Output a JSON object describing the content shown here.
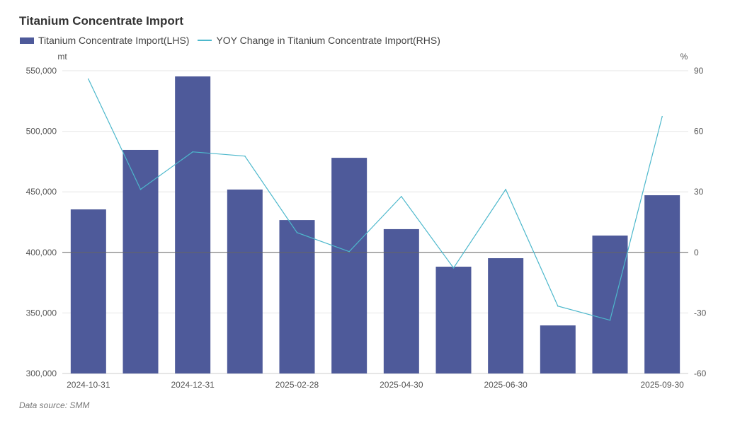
{
  "chart_data": {
    "type": "bar+line",
    "title": "Titanium Concentrate Import",
    "categories": [
      "2024-10-31",
      "",
      "2024-12-31",
      "",
      "2025-02-28",
      "",
      "2025-04-30",
      "",
      "2025-06-30",
      "",
      "",
      "2025-09-30"
    ],
    "series": [
      {
        "name": "Titanium Concentrate Import(LHS)",
        "type": "bar",
        "axis": "left",
        "values": [
          435500,
          484600,
          545300,
          451900,
          426700,
          478100,
          419200,
          388200,
          395200,
          339700,
          413900,
          447200
        ]
      },
      {
        "name": "YOY Change in Titanium Concentrate Import(RHS)",
        "type": "line",
        "axis": "right",
        "values": [
          85.9,
          31.2,
          49.8,
          47.7,
          9.8,
          0.4,
          27.7,
          -7.7,
          31.2,
          -26.6,
          -33.6,
          67.3
        ]
      }
    ],
    "left_axis": {
      "unit": "mt",
      "ylim": [
        300000,
        550000
      ],
      "ticks": [
        "300,000",
        "350,000",
        "400,000",
        "450,000",
        "500,000",
        "550,000"
      ],
      "tick_values": [
        300000,
        350000,
        400000,
        450000,
        500000,
        550000
      ]
    },
    "right_axis": {
      "unit": "%",
      "ylim": [
        -60,
        90
      ],
      "ticks": [
        "-60",
        "-30",
        "0",
        "30",
        "60",
        "90"
      ],
      "tick_values": [
        -60,
        -30,
        0,
        30,
        60,
        90
      ]
    },
    "legend_position": "top-left",
    "grid": true,
    "colors": {
      "bar": "#4e5a9a",
      "line": "#4db8cc",
      "grid": "#e6e6e6",
      "zero": "#666666"
    }
  },
  "source": "Data source:  SMM"
}
